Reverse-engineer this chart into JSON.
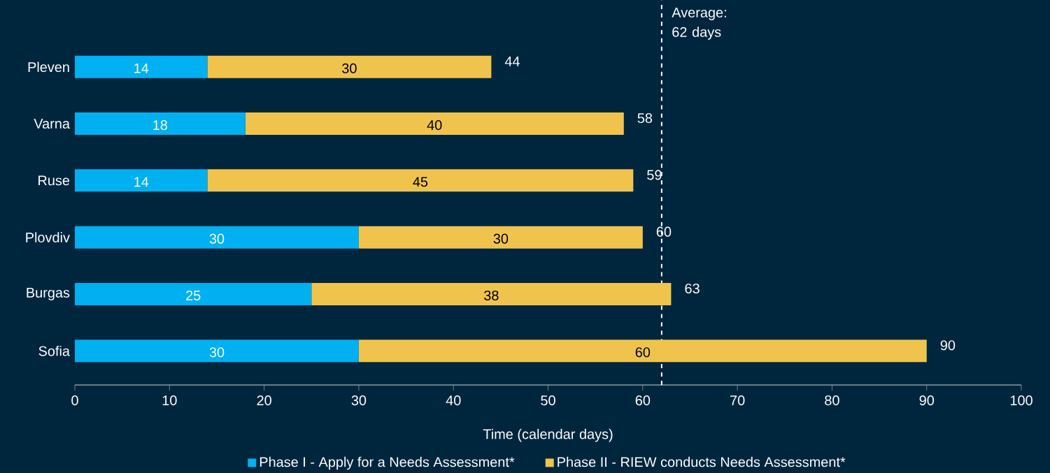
{
  "chart_data": {
    "type": "bar",
    "orientation": "horizontal",
    "stacked": true,
    "xlabel": "Time (calendar days)",
    "categories": [
      "Pleven",
      "Varna",
      "Ruse",
      "Plovdiv",
      "Burgas",
      "Sofia"
    ],
    "series": [
      {
        "name": "Phase I - Apply for a Needs Assessment*",
        "color": "#00b0f0",
        "values": [
          14,
          18,
          14,
          30,
          25,
          30
        ]
      },
      {
        "name": "Phase II - RIEW conducts Needs Assessment*",
        "color": "#f0c44c",
        "values": [
          30,
          40,
          45,
          30,
          38,
          60
        ]
      }
    ],
    "data_labels": true,
    "totals": [
      "44",
      "58",
      "59",
      "60",
      "63",
      "90"
    ],
    "xlim": [
      0,
      100
    ],
    "xticks": [
      0,
      10,
      20,
      30,
      40,
      50,
      60,
      70,
      80,
      90,
      100
    ],
    "ref_lines": [
      {
        "axis": "x",
        "value": 62,
        "label": "Average: 62 days",
        "color": "#ffffff",
        "line_style": "dashed"
      }
    ],
    "grid": false,
    "legend": "bottom"
  }
}
